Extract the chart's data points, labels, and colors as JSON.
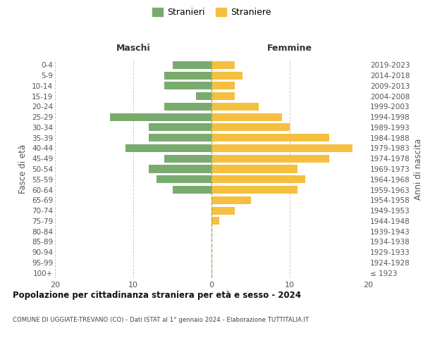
{
  "age_groups": [
    "100+",
    "95-99",
    "90-94",
    "85-89",
    "80-84",
    "75-79",
    "70-74",
    "65-69",
    "60-64",
    "55-59",
    "50-54",
    "45-49",
    "40-44",
    "35-39",
    "30-34",
    "25-29",
    "20-24",
    "15-19",
    "10-14",
    "5-9",
    "0-4"
  ],
  "birth_years": [
    "≤ 1923",
    "1924-1928",
    "1929-1933",
    "1934-1938",
    "1939-1943",
    "1944-1948",
    "1949-1953",
    "1954-1958",
    "1959-1963",
    "1964-1968",
    "1969-1973",
    "1974-1978",
    "1979-1983",
    "1984-1988",
    "1989-1993",
    "1994-1998",
    "1999-2003",
    "2004-2008",
    "2009-2013",
    "2014-2018",
    "2019-2023"
  ],
  "maschi": [
    0,
    0,
    0,
    0,
    0,
    0,
    0,
    0,
    5,
    7,
    8,
    6,
    11,
    8,
    8,
    13,
    6,
    2,
    6,
    6,
    5
  ],
  "femmine": [
    0,
    0,
    0,
    0,
    0,
    1,
    3,
    5,
    11,
    12,
    11,
    15,
    18,
    15,
    10,
    9,
    6,
    3,
    3,
    4,
    3
  ],
  "color_maschi": "#7aab6e",
  "color_femmine": "#f5c040",
  "title": "Popolazione per cittadinanza straniera per età e sesso - 2024",
  "subtitle": "COMUNE DI UGGIATE-TREVANO (CO) - Dati ISTAT al 1° gennaio 2024 - Elaborazione TUTTITALIA.IT",
  "ylabel_left": "Fasce di età",
  "ylabel_right": "Anni di nascita",
  "legend_maschi": "Stranieri",
  "legend_femmine": "Straniere",
  "xlim": 20,
  "bg_color": "#ffffff",
  "grid_color": "#cccccc",
  "maschi_label": "Maschi",
  "femmine_label": "Femmine"
}
